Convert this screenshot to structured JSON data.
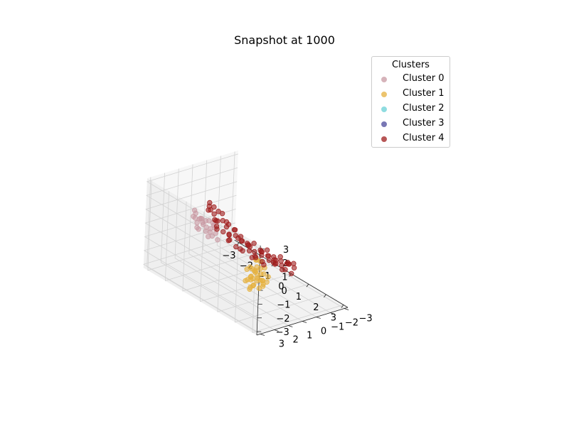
{
  "chart_data": {
    "type": "scatter",
    "title": "Snapshot at 1000",
    "xlabel": "",
    "ylabel": "",
    "zlabel": "",
    "xlim": [
      -3,
      3
    ],
    "ylim": [
      -3,
      3
    ],
    "zlim": [
      -3,
      3
    ],
    "x_ticks": [
      "−3",
      "−2",
      "−1",
      "0",
      "1",
      "2",
      "3"
    ],
    "y_ticks": [
      "−3",
      "−2",
      "−1",
      "0",
      "1",
      "2",
      "3"
    ],
    "z_ticks": [
      "−3",
      "−2",
      "−1",
      "0",
      "1",
      "2",
      "3"
    ],
    "grid": true,
    "legend": {
      "title": "Clusters",
      "placement": "top-right",
      "entries": [
        "Cluster 0",
        "Cluster 1",
        "Cluster 2",
        "Cluster 3",
        "Cluster 4"
      ]
    },
    "series": [
      {
        "name": "Cluster 0",
        "color": "#c99aa3",
        "points": [
          [
            -1.8,
            1.6,
            1.5
          ],
          [
            -1.7,
            1.8,
            1.2
          ],
          [
            -1.6,
            1.4,
            1.0
          ],
          [
            -1.5,
            1.9,
            1.6
          ],
          [
            -1.4,
            1.5,
            0.9
          ],
          [
            -1.3,
            1.7,
            1.3
          ],
          [
            -1.2,
            1.3,
            1.1
          ],
          [
            -1.1,
            1.6,
            0.8
          ],
          [
            -1.0,
            1.8,
            1.4
          ],
          [
            -0.9,
            1.4,
            1.2
          ],
          [
            -0.8,
            1.7,
            0.7
          ],
          [
            -1.6,
            1.2,
            0.5
          ],
          [
            -1.4,
            1.9,
            1.0
          ],
          [
            -1.2,
            1.5,
            0.4
          ],
          [
            -1.0,
            1.2,
            0.9
          ],
          [
            -0.7,
            1.5,
            1.0
          ],
          [
            -0.6,
            1.8,
            0.6
          ],
          [
            -1.9,
            1.4,
            0.8
          ],
          [
            -1.5,
            1.6,
            1.1
          ],
          [
            -1.3,
            1.9,
            0.6
          ],
          [
            -0.9,
            1.7,
            0.3
          ],
          [
            -1.1,
            1.3,
            0.6
          ],
          [
            -0.8,
            1.3,
            0.5
          ],
          [
            -1.7,
            1.5,
            0.3
          ],
          [
            -0.6,
            1.4,
            0.2
          ]
        ]
      },
      {
        "name": "Cluster 1",
        "color": "#e6b13e",
        "points": [
          [
            1.6,
            1.8,
            0.0
          ],
          [
            1.7,
            1.5,
            -0.3
          ],
          [
            1.8,
            2.0,
            -0.5
          ],
          [
            1.9,
            1.7,
            0.2
          ],
          [
            2.0,
            1.4,
            -0.8
          ],
          [
            2.1,
            1.9,
            -0.2
          ],
          [
            2.2,
            1.6,
            -1.0
          ],
          [
            1.5,
            1.3,
            -0.6
          ],
          [
            1.6,
            2.1,
            -0.9
          ],
          [
            1.7,
            1.2,
            0.3
          ],
          [
            1.8,
            1.8,
            -1.2
          ],
          [
            1.9,
            1.4,
            -0.4
          ],
          [
            2.0,
            2.0,
            0.1
          ],
          [
            2.1,
            1.5,
            -0.7
          ],
          [
            2.2,
            1.8,
            -0.5
          ],
          [
            1.4,
            1.7,
            -1.1
          ],
          [
            1.5,
            1.9,
            -0.2
          ],
          [
            1.6,
            1.5,
            -1.4
          ],
          [
            1.7,
            1.7,
            -0.8
          ],
          [
            1.8,
            1.3,
            -0.1
          ],
          [
            1.9,
            2.1,
            -0.6
          ],
          [
            2.0,
            1.6,
            -1.3
          ],
          [
            2.1,
            1.2,
            -0.9
          ],
          [
            2.2,
            2.0,
            -0.3
          ],
          [
            1.5,
            1.6,
            -1.6
          ],
          [
            1.6,
            1.4,
            0.4
          ],
          [
            1.7,
            1.9,
            -1.5
          ],
          [
            1.8,
            1.6,
            0.6
          ],
          [
            1.9,
            1.2,
            -1.2
          ],
          [
            2.0,
            1.8,
            -0.7
          ],
          [
            2.3,
            1.7,
            0.0
          ],
          [
            1.4,
            1.4,
            -0.4
          ],
          [
            2.1,
            1.4,
            0.2
          ],
          [
            1.6,
            1.7,
            -0.7
          ],
          [
            2.4,
            1.5,
            -0.2
          ]
        ]
      },
      {
        "name": "Cluster 2",
        "color": "#6ad1d6",
        "points": []
      },
      {
        "name": "Cluster 3",
        "color": "#4b4a9c",
        "points": []
      },
      {
        "name": "Cluster 4",
        "color": "#a01e1e",
        "points": [
          [
            -2.6,
            -0.5,
            0.8
          ],
          [
            -2.5,
            -0.3,
            0.4
          ],
          [
            -2.4,
            -0.6,
            0.1
          ],
          [
            -2.3,
            -0.2,
            0.6
          ],
          [
            -2.2,
            -0.5,
            -0.2
          ],
          [
            -2.1,
            -0.8,
            0.3
          ],
          [
            -2.0,
            -0.3,
            -0.4
          ],
          [
            -1.9,
            -0.6,
            0.0
          ],
          [
            -1.8,
            -0.9,
            -0.3
          ],
          [
            -1.7,
            -0.4,
            -0.6
          ],
          [
            -1.6,
            -0.7,
            -0.8
          ],
          [
            -1.5,
            -1.0,
            -0.5
          ],
          [
            -1.4,
            -0.5,
            -1.0
          ],
          [
            -1.3,
            -0.8,
            -0.7
          ],
          [
            -1.2,
            -1.1,
            -1.1
          ],
          [
            -1.1,
            -0.6,
            -1.3
          ],
          [
            -1.0,
            -0.9,
            -0.9
          ],
          [
            -0.9,
            -1.2,
            -1.2
          ],
          [
            -0.8,
            -0.7,
            -1.4
          ],
          [
            -0.7,
            -1.0,
            -1.0
          ],
          [
            -0.6,
            -1.3,
            -1.5
          ],
          [
            -0.5,
            -0.8,
            -1.2
          ],
          [
            -0.4,
            -1.1,
            -1.6
          ],
          [
            -0.3,
            -1.4,
            -1.3
          ],
          [
            -0.2,
            -0.9,
            -1.5
          ],
          [
            -0.1,
            -1.2,
            -1.1
          ],
          [
            0.0,
            -1.5,
            -1.4
          ],
          [
            0.1,
            -1.0,
            -1.6
          ],
          [
            0.2,
            -1.3,
            -1.2
          ],
          [
            0.3,
            -1.6,
            -1.5
          ],
          [
            0.4,
            -1.1,
            -1.3
          ],
          [
            0.5,
            -1.4,
            -1.6
          ],
          [
            0.6,
            -1.7,
            -1.4
          ],
          [
            0.7,
            -1.2,
            -1.1
          ],
          [
            0.8,
            -1.5,
            -1.5
          ],
          [
            0.9,
            -1.8,
            -1.3
          ],
          [
            1.0,
            -1.3,
            -1.6
          ],
          [
            1.1,
            -1.6,
            -1.2
          ],
          [
            1.2,
            -1.9,
            -1.5
          ],
          [
            1.3,
            -1.4,
            -1.0
          ],
          [
            -2.5,
            -0.7,
            0.5
          ],
          [
            -2.2,
            -0.4,
            -0.1
          ],
          [
            -1.9,
            -0.2,
            -0.5
          ],
          [
            -1.6,
            -0.5,
            -0.2
          ],
          [
            -1.3,
            -0.3,
            -0.9
          ],
          [
            -1.0,
            -0.6,
            -0.6
          ],
          [
            -0.7,
            -0.4,
            -1.1
          ],
          [
            -0.4,
            -0.7,
            -0.8
          ],
          [
            -0.1,
            -0.5,
            -1.3
          ],
          [
            0.2,
            -0.8,
            -1.0
          ],
          [
            0.5,
            -0.6,
            -1.4
          ],
          [
            0.8,
            -0.9,
            -1.1
          ],
          [
            1.1,
            -0.7,
            -0.9
          ],
          [
            1.4,
            -1.0,
            -1.2
          ],
          [
            1.6,
            -1.2,
            -1.4
          ],
          [
            -2.4,
            -0.9,
            0.2
          ],
          [
            -2.0,
            -1.0,
            -0.3
          ],
          [
            -1.7,
            -1.2,
            -0.7
          ],
          [
            -1.4,
            -1.3,
            -1.0
          ],
          [
            -1.1,
            -1.4,
            -1.3
          ],
          [
            -0.8,
            -1.5,
            -1.1
          ],
          [
            -0.5,
            -1.6,
            -1.4
          ],
          [
            -0.2,
            -1.7,
            -1.2
          ],
          [
            0.1,
            -1.8,
            -1.5
          ],
          [
            0.4,
            -1.9,
            -1.3
          ],
          [
            0.7,
            -2.0,
            -1.6
          ],
          [
            1.0,
            -2.1,
            -1.4
          ],
          [
            -2.3,
            -0.1,
            0.9
          ],
          [
            -1.8,
            -0.1,
            0.2
          ],
          [
            -1.2,
            -0.2,
            -0.4
          ]
        ]
      }
    ]
  }
}
